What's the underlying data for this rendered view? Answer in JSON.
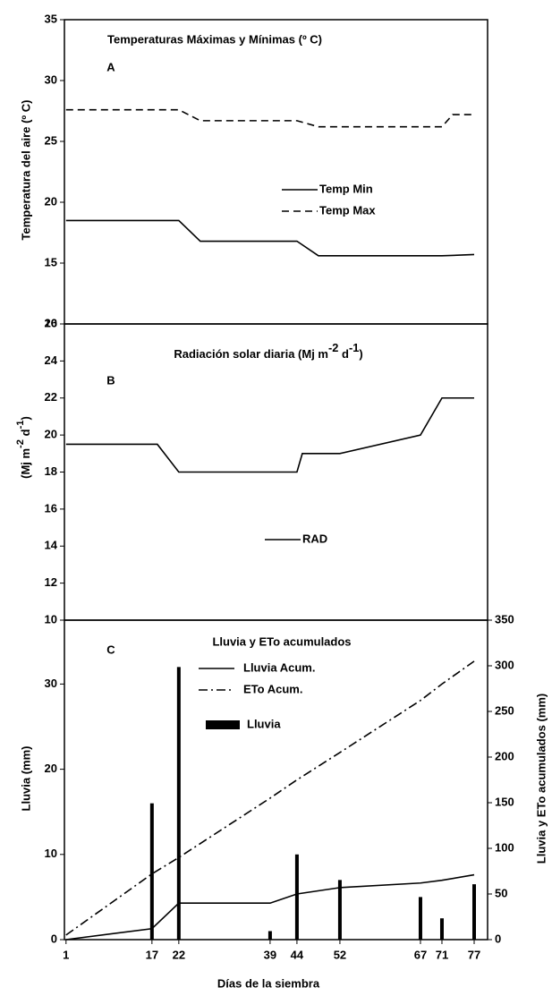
{
  "chart_data": [
    {
      "type": "line",
      "title": "Temperaturas Máximas y Mínimas (º C)",
      "label": "A",
      "ylabel": "Temperatura del aire (º C)",
      "xlim": [
        0.7,
        79.5
      ],
      "ylim": [
        10,
        35
      ],
      "yticks": [
        10,
        15,
        20,
        25,
        30,
        35
      ],
      "series": [
        {
          "name": "Temp Min",
          "color": "#000000",
          "dash": "solid",
          "x": [
            1,
            22,
            26,
            44,
            48,
            71,
            77
          ],
          "values": [
            18.5,
            18.5,
            16.8,
            16.8,
            15.6,
            15.6,
            15.7
          ]
        },
        {
          "name": "Temp Max",
          "color": "#000000",
          "dash": "dashed",
          "x": [
            1,
            22,
            26,
            44,
            48,
            71,
            73,
            77
          ],
          "values": [
            27.6,
            27.6,
            26.7,
            26.7,
            26.2,
            26.2,
            27.2,
            27.2
          ]
        }
      ]
    },
    {
      "type": "line",
      "title": [
        "Radiación solar diaria (Mj m",
        "-2",
        " d",
        "-1",
        ")"
      ],
      "label": "B",
      "ylabel": [
        "(Mj m",
        "-2",
        " d",
        "-1",
        ")"
      ],
      "xlim": [
        0.7,
        79.5
      ],
      "ylim": [
        10,
        26
      ],
      "yticks": [
        10,
        12,
        14,
        16,
        18,
        20,
        22,
        24,
        26
      ],
      "series": [
        {
          "name": "RAD",
          "color": "#000000",
          "dash": "solid",
          "x": [
            1,
            18,
            22,
            44,
            45,
            52,
            67,
            71,
            77
          ],
          "values": [
            19.5,
            19.5,
            18,
            18,
            19,
            19,
            20,
            22,
            22
          ]
        }
      ]
    },
    {
      "type": "combo",
      "title": "Lluvia y ETo acumulados",
      "label": "C",
      "ylabel": "Lluvia (mm)",
      "y2label": "Lluvia y ETo acumulados (mm)",
      "xlabel": "Días de la siembra",
      "xlim": [
        0.7,
        79.5
      ],
      "xticks": [
        1,
        17,
        22,
        39,
        44,
        52,
        67,
        71,
        77
      ],
      "ylim": [
        0,
        37.5
      ],
      "yticks": [
        0,
        10,
        20,
        30
      ],
      "y2lim": [
        0,
        350
      ],
      "y2ticks": [
        0,
        50,
        100,
        150,
        200,
        250,
        300,
        350
      ],
      "series": [
        {
          "name": "Lluvia Acum.",
          "type": "line",
          "axis": "y2",
          "color": "#000000",
          "dash": "solid",
          "x": [
            1,
            17,
            22,
            39,
            44,
            52,
            67,
            71,
            77
          ],
          "values": [
            0,
            12,
            40,
            40,
            50,
            57,
            62,
            65,
            71
          ]
        },
        {
          "name": "ETo Acum.",
          "type": "line",
          "axis": "y2",
          "color": "#000000",
          "dash": "dashdot",
          "x": [
            1,
            17,
            22,
            39,
            44,
            52,
            67,
            71,
            77
          ],
          "values": [
            5,
            72,
            90,
            155,
            175,
            205,
            262,
            280,
            305
          ]
        },
        {
          "name": "Lluvia",
          "type": "bar",
          "color": "#000000",
          "x": [
            17,
            22,
            39,
            44,
            52,
            67,
            71,
            77
          ],
          "values": [
            16,
            32,
            1,
            10,
            7,
            5,
            2.5,
            6.5
          ]
        }
      ]
    }
  ]
}
